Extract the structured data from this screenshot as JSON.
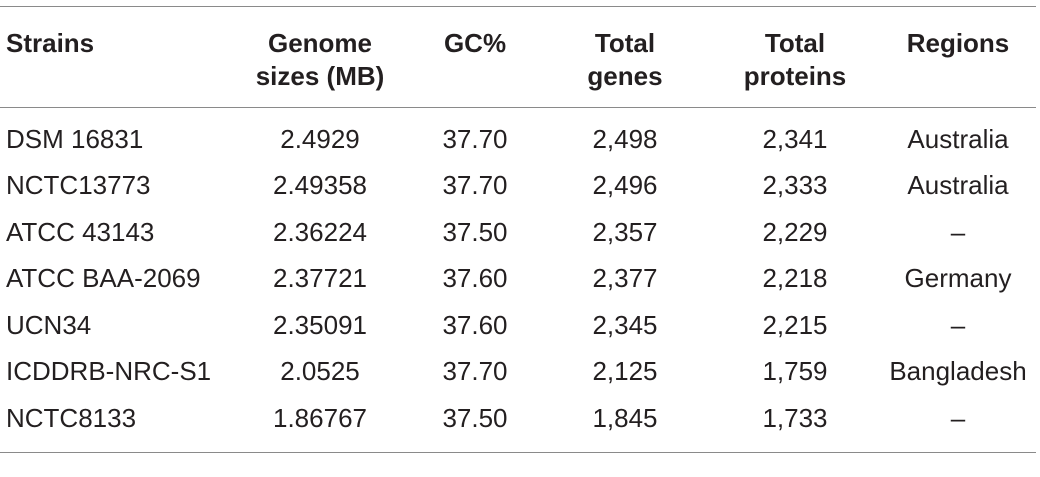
{
  "table": {
    "headers": [
      [
        "Strains"
      ],
      [
        "Genome",
        "sizes (MB)"
      ],
      [
        "GC%"
      ],
      [
        "Total",
        "genes"
      ],
      [
        "Total",
        "proteins"
      ],
      [
        "Regions"
      ]
    ],
    "rows": [
      [
        "DSM 16831",
        "2.4929",
        "37.70",
        "2,498",
        "2,341",
        "Australia"
      ],
      [
        "NCTC13773",
        "2.49358",
        "37.70",
        "2,496",
        "2,333",
        "Australia"
      ],
      [
        "ATCC 43143",
        "2.36224",
        "37.50",
        "2,357",
        "2,229",
        "–"
      ],
      [
        "ATCC BAA-2069",
        "2.37721",
        "37.60",
        "2,377",
        "2,218",
        "Germany"
      ],
      [
        "UCN34",
        "2.35091",
        "37.60",
        "2,345",
        "2,215",
        "–"
      ],
      [
        "ICDDRB-NRC-S1",
        "2.0525",
        "37.70",
        "2,125",
        "1,759",
        "Bangladesh"
      ],
      [
        "NCTC8133",
        "1.86767",
        "37.50",
        "1,845",
        "1,733",
        "–"
      ]
    ]
  }
}
